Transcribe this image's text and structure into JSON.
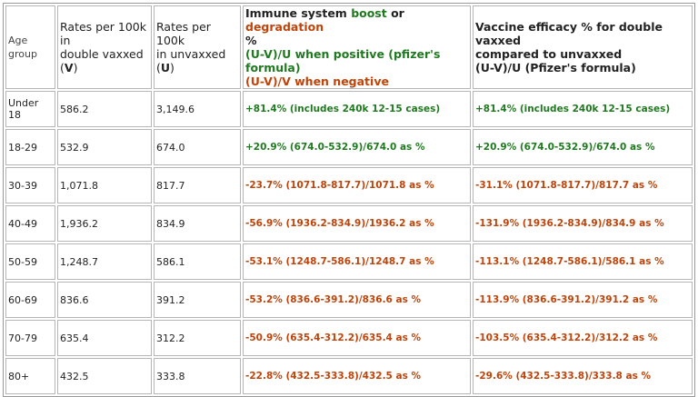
{
  "header": {
    "age": "Age group",
    "rates_double": {
      "l1": "Rates per 100k",
      "l2": "in",
      "l3": "double vaxxed",
      "l4_pre": "(",
      "l4_sym": "V",
      "l4_post": ")"
    },
    "rates_unvax": {
      "l1": "Rates per 100k",
      "l2": "in unvaxxed",
      "l3_pre": "(",
      "l3_sym": "U",
      "l3_post": ")"
    },
    "immune": {
      "t1": "Immune system ",
      "t2": "boost",
      "t3": " or ",
      "t4": "degradation",
      "t5": "%",
      "pos": "(U-V)/U when positive (pfizer's formula)",
      "neg": "(U-V)/V when negative"
    },
    "efficacy": {
      "l1": "Vaccine efficacy % for double vaxxed",
      "l2": "compared to unvaxxed",
      "l3": "(U-V)/U (Pfizer's formula)"
    }
  },
  "rows": [
    {
      "age": "Under 18",
      "v": "586.2",
      "u": "3,149.6",
      "immune": "+81.4% (includes 240k 12-15 cases)",
      "efficacy": "+81.4% (includes 240k 12-15 cases)",
      "color": "green"
    },
    {
      "age": "18-29",
      "v": "532.9",
      "u": "674.0",
      "immune": "+20.9% (674.0-532.9)/674.0 as %",
      "efficacy": "+20.9% (674.0-532.9)/674.0 as %",
      "color": "green"
    },
    {
      "age": "30-39",
      "v": "1,071.8",
      "u": "817.7",
      "immune": "-23.7%  (1071.8-817.7)/1071.8 as %",
      "efficacy": "-31.1%  (1071.8-817.7)/817.7 as %",
      "color": "orange"
    },
    {
      "age": "40-49",
      "v": "1,936.2",
      "u": "834.9",
      "immune": "-56.9%  (1936.2-834.9)/1936.2 as %",
      "efficacy": "-131.9%  (1936.2-834.9)/834.9 as %",
      "color": "orange"
    },
    {
      "age": "50-59",
      "v": "1,248.7",
      "u": "586.1",
      "immune": "-53.1%  (1248.7-586.1)/1248.7 as %",
      "efficacy": "-113.1%  (1248.7-586.1)/586.1 as %",
      "color": "orange"
    },
    {
      "age": "60-69",
      "v": "836.6",
      "u": "391.2",
      "immune": "-53.2%  (836.6-391.2)/836.6 as %",
      "efficacy": "-113.9%  (836.6-391.2)/391.2 as %",
      "color": "orange"
    },
    {
      "age": "70-79",
      "v": "635.4",
      "u": "312.2",
      "immune": "-50.9%  (635.4-312.2)/635.4 as %",
      "efficacy": "-103.5%  (635.4-312.2)/312.2 as %",
      "color": "orange"
    },
    {
      "age": "80+",
      "v": "432.5",
      "u": "333.8",
      "immune": "-22.8%  (432.5-333.8)/432.5 as %",
      "efficacy": "-29.6%  (432.5-333.8)/333.8 as %",
      "color": "orange"
    }
  ],
  "colors": {
    "green": "#1f7a1f",
    "orange": "#c0440a"
  }
}
